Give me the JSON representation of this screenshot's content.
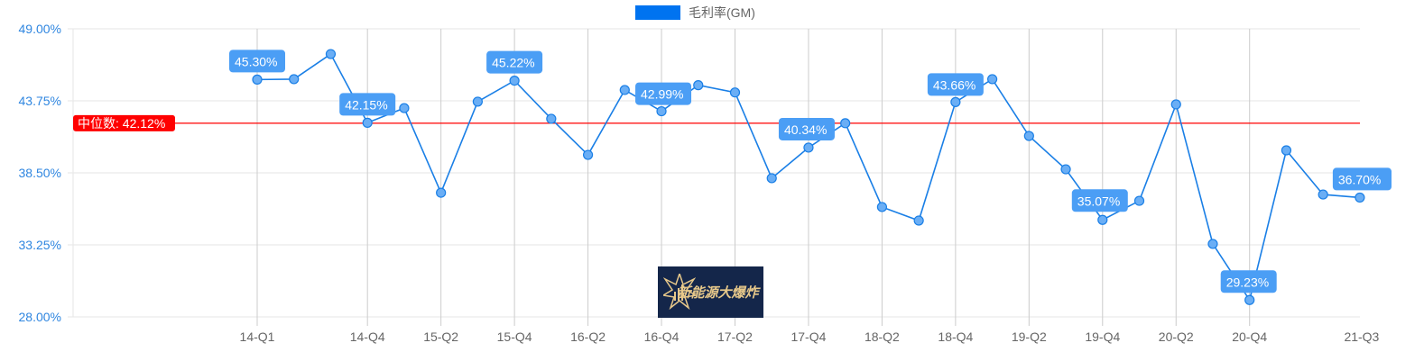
{
  "chart_data": {
    "type": "line",
    "title": "",
    "legend": {
      "position": "top",
      "entries": [
        {
          "name": "毛利率(GM)",
          "color": "#0073f0"
        }
      ]
    },
    "xlabel": "",
    "ylabel": "",
    "ylim": [
      28.0,
      49.0
    ],
    "y_ticks": [
      "49.00%",
      "43.75%",
      "38.50%",
      "33.25%",
      "28.00%"
    ],
    "x_tick_labels": [
      "14-Q1",
      "14-Q4",
      "15-Q2",
      "15-Q4",
      "16-Q2",
      "16-Q4",
      "17-Q2",
      "17-Q4",
      "18-Q2",
      "18-Q4",
      "19-Q2",
      "19-Q4",
      "20-Q2",
      "20-Q4",
      "21-Q3"
    ],
    "grid": true,
    "categories": [
      "14-Q1",
      "14-Q2",
      "14-Q3",
      "14-Q4",
      "15-Q1",
      "15-Q2",
      "15-Q3",
      "15-Q4",
      "16-Q1",
      "16-Q2",
      "16-Q3",
      "16-Q4",
      "17-Q1",
      "17-Q2",
      "17-Q3",
      "17-Q4",
      "18-Q1",
      "18-Q2",
      "18-Q3",
      "18-Q4",
      "19-Q1",
      "19-Q2",
      "19-Q3",
      "19-Q4",
      "20-Q1",
      "20-Q2",
      "20-Q3",
      "20-Q4",
      "21-Q1",
      "21-Q2",
      "21-Q3"
    ],
    "series": [
      {
        "name": "毛利率(GM)",
        "color": "#1a7fe6",
        "values": [
          45.3,
          45.33,
          47.16,
          42.15,
          43.22,
          37.05,
          43.69,
          45.22,
          42.44,
          39.81,
          44.54,
          42.99,
          44.89,
          44.36,
          38.11,
          40.34,
          42.12,
          36.01,
          35.02,
          43.66,
          45.33,
          41.19,
          38.76,
          35.07,
          36.46,
          43.49,
          33.32,
          29.23,
          40.14,
          36.92,
          36.7
        ]
      }
    ],
    "data_labels": [
      {
        "category": "14-Q1",
        "text": "45.30%"
      },
      {
        "category": "14-Q4",
        "text": "42.15%"
      },
      {
        "category": "15-Q4",
        "text": "45.22%"
      },
      {
        "category": "16-Q4",
        "text": "42.99%"
      },
      {
        "category": "17-Q4",
        "text": "40.34%"
      },
      {
        "category": "18-Q4",
        "text": "43.66%"
      },
      {
        "category": "19-Q4",
        "text": "35.07%"
      },
      {
        "category": "20-Q4",
        "text": "29.23%"
      },
      {
        "category": "21-Q3",
        "text": "36.70%"
      }
    ],
    "annotations": [
      {
        "type": "horizontal-line",
        "value": 42.12,
        "color": "#ff0000",
        "label": "中位数: 42.12%"
      }
    ]
  },
  "legend": {
    "label": "毛利率(GM)",
    "color": "#0073f0"
  },
  "median": {
    "label": "中位数: 42.12%"
  },
  "watermark": {
    "text": "新能源大爆炸"
  }
}
